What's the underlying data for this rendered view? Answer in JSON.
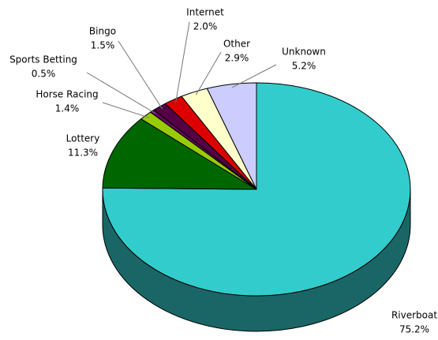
{
  "chart_data": {
    "type": "pie",
    "categories": [
      "Riverboat",
      "Lottery",
      "Horse Racing",
      "Sports Betting",
      "Bingo",
      "Internet",
      "Other",
      "Unknown"
    ],
    "values": [
      75.2,
      11.3,
      1.4,
      0.5,
      1.5,
      2.0,
      2.9,
      5.2
    ],
    "value_labels": [
      "75.2%",
      "11.3%",
      "1.4%",
      "0.5%",
      "1.5%",
      "2.0%",
      "2.9%",
      "5.2%"
    ],
    "colors": [
      "#33cccc",
      "#006600",
      "#99cc00",
      "#660066",
      "#550044",
      "#dd0000",
      "#ffffcc",
      "#ccccff"
    ]
  }
}
